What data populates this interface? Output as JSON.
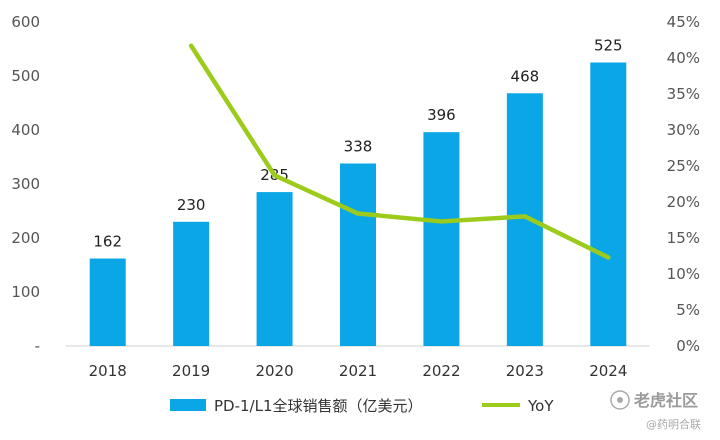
{
  "chart_data": {
    "type": "bar",
    "categories": [
      "2018",
      "2019",
      "2020",
      "2021",
      "2022",
      "2023",
      "2024"
    ],
    "series": [
      {
        "name": "PD-1/L1全球销售额（亿美元）",
        "type": "bar",
        "axis": "left",
        "values": [
          162,
          230,
          285,
          338,
          396,
          468,
          525
        ],
        "color": "#0aa6e6",
        "data_labels": [
          "162",
          "230",
          "285",
          "338",
          "396",
          "468",
          "525"
        ]
      },
      {
        "name": "YoY",
        "type": "line",
        "axis": "right",
        "values": [
          null,
          41.7,
          23.7,
          18.4,
          17.3,
          18.0,
          12.3
        ],
        "color": "#9ccb1c"
      }
    ],
    "y_left": {
      "ylim": [
        0,
        600
      ],
      "ticks": [
        "-",
        "100",
        "200",
        "300",
        "400",
        "500",
        "600"
      ]
    },
    "y_right": {
      "ylim": [
        0,
        45
      ],
      "ticks": [
        "0%",
        "5%",
        "10%",
        "15%",
        "20%",
        "25%",
        "30%",
        "35%",
        "40%",
        "45%"
      ]
    },
    "grid": false,
    "legend": "bottom"
  },
  "watermark": {
    "brand": "老虎社区",
    "handle": "@药明合联"
  }
}
